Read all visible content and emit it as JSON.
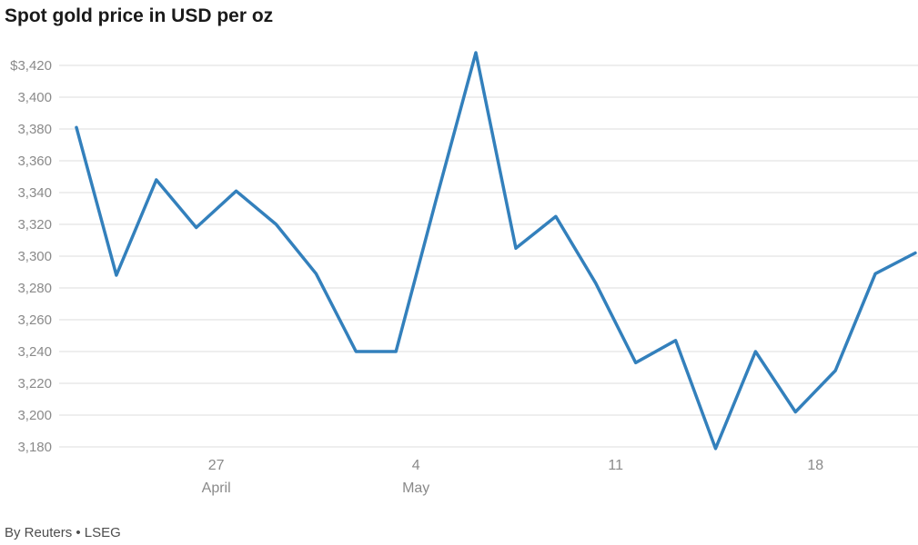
{
  "header": {
    "title": "Spot gold price in USD per oz"
  },
  "footer": {
    "source": "By Reuters • LSEG"
  },
  "colors": {
    "line": "#3380bc",
    "grid": "#dcdcdc",
    "axis-text": "#8a8a8a",
    "title-text": "#1a1a1a",
    "source-text": "#4d4d4d"
  },
  "chart_data": {
    "type": "line",
    "title": "Spot gold price in USD per oz",
    "source": "By Reuters • LSEG",
    "xlabel": "",
    "ylabel": "Spot gold price in USD per oz",
    "ylim": [
      3180,
      3420
    ],
    "grid": true,
    "legend": false,
    "y_ticks": [
      {
        "value": 3420,
        "label": "$3,420"
      },
      {
        "value": 3400,
        "label": "3,400"
      },
      {
        "value": 3380,
        "label": "3,380"
      },
      {
        "value": 3360,
        "label": "3,360"
      },
      {
        "value": 3340,
        "label": "3,340"
      },
      {
        "value": 3320,
        "label": "3,320"
      },
      {
        "value": 3300,
        "label": "3,300"
      },
      {
        "value": 3280,
        "label": "3,280"
      },
      {
        "value": 3260,
        "label": "3,260"
      },
      {
        "value": 3240,
        "label": "3,240"
      },
      {
        "value": 3220,
        "label": "3,220"
      },
      {
        "value": 3200,
        "label": "3,200"
      },
      {
        "value": 3180,
        "label": "3,180"
      }
    ],
    "x_ticks": [
      {
        "pos": 3.5,
        "day": "27",
        "month": "April"
      },
      {
        "pos": 8.5,
        "day": "4",
        "month": "May"
      },
      {
        "pos": 13.5,
        "day": "11",
        "month": ""
      },
      {
        "pos": 18.5,
        "day": "18",
        "month": ""
      }
    ],
    "series": [
      {
        "name": "Spot gold price (USD per oz)",
        "values": [
          3381,
          3288,
          3348,
          3318,
          3341,
          3320,
          3289,
          3240,
          3240,
          3335,
          3428,
          3305,
          3325,
          3283,
          3233,
          3247,
          3179,
          3240,
          3202,
          3228,
          3289,
          3302
        ]
      }
    ]
  }
}
